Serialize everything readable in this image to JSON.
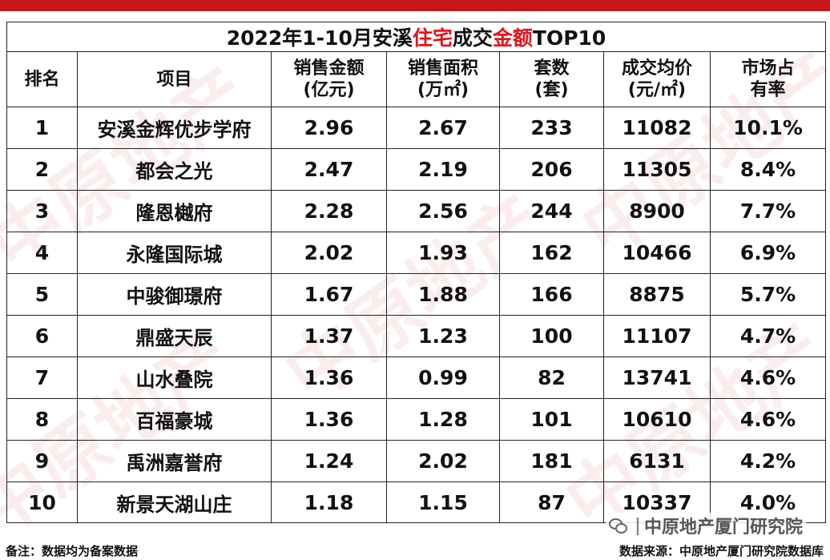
{
  "title": {
    "part1": "2022年1-10月安溪",
    "highlight1": "住宅",
    "part2": "成交",
    "highlight2": "金额",
    "part3": "TOP10"
  },
  "headers": [
    {
      "line1": "排名",
      "line2": ""
    },
    {
      "line1": "项目",
      "line2": ""
    },
    {
      "line1": "销售金额",
      "line2": "(亿元)"
    },
    {
      "line1": "销售面积",
      "line2": "(万㎡)"
    },
    {
      "line1": "套数",
      "line2": "(套)"
    },
    {
      "line1": "成交均价",
      "line2": "(元/㎡)"
    },
    {
      "line1": "市场占",
      "line2": "有率"
    }
  ],
  "rows": [
    {
      "rank": "1",
      "name": "安溪金辉优步学府",
      "amount": "2.96",
      "area": "2.67",
      "units": "233",
      "price": "11082",
      "share": "10.1%"
    },
    {
      "rank": "2",
      "name": "都会之光",
      "amount": "2.47",
      "area": "2.19",
      "units": "206",
      "price": "11305",
      "share": "8.4%"
    },
    {
      "rank": "3",
      "name": "隆恩樾府",
      "amount": "2.28",
      "area": "2.56",
      "units": "244",
      "price": "8900",
      "share": "7.7%"
    },
    {
      "rank": "4",
      "name": "永隆国际城",
      "amount": "2.02",
      "area": "1.93",
      "units": "162",
      "price": "10466",
      "share": "6.9%"
    },
    {
      "rank": "5",
      "name": "中骏御璟府",
      "amount": "1.67",
      "area": "1.88",
      "units": "166",
      "price": "8875",
      "share": "5.7%"
    },
    {
      "rank": "6",
      "name": "鼎盛天辰",
      "amount": "1.37",
      "area": "1.23",
      "units": "100",
      "price": "11107",
      "share": "4.7%"
    },
    {
      "rank": "7",
      "name": "山水叠院",
      "amount": "1.36",
      "area": "0.99",
      "units": "82",
      "price": "13741",
      "share": "4.6%"
    },
    {
      "rank": "8",
      "name": "百福豪城",
      "amount": "1.36",
      "area": "1.28",
      "units": "101",
      "price": "10610",
      "share": "4.6%"
    },
    {
      "rank": "9",
      "name": "禹洲嘉誉府",
      "amount": "1.24",
      "area": "2.02",
      "units": "181",
      "price": "6131",
      "share": "4.2%"
    },
    {
      "rank": "10",
      "name": "新景天湖山庄",
      "amount": "1.18",
      "area": "1.15",
      "units": "87",
      "price": "10337",
      "share": "4.0%"
    }
  ],
  "footer": {
    "note": "备注：数据均为备案数据",
    "source": "数据来源：中原地产厦门研究院数据库"
  },
  "brand": {
    "account": "中原地产厦门研究院"
  },
  "watermark": {
    "text": "中原地产"
  },
  "colors": {
    "accent": "#c8161d",
    "highlight_text": "#e4141b"
  }
}
